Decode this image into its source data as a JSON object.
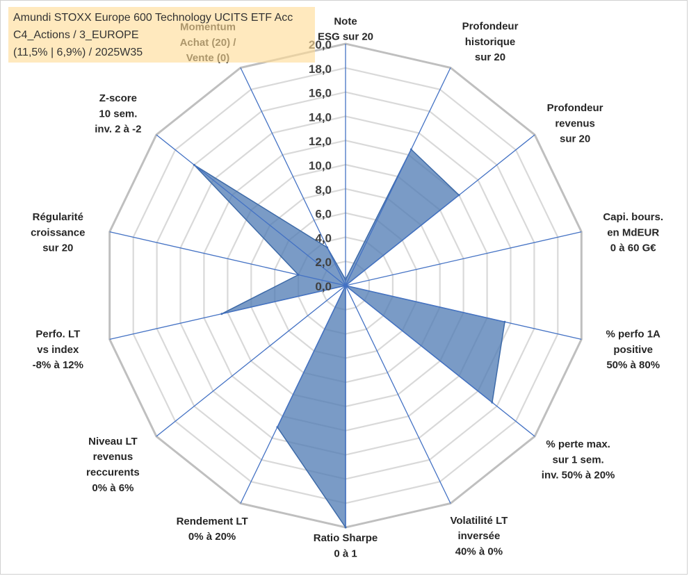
{
  "info_box": {
    "line1": "Amundi STOXX Europe 600 Technology UCITS ETF Acc",
    "line2": "C4_Actions / 3_EUROPE",
    "line3": "(11,5% | 6,9%) / 2025W35"
  },
  "chart_data": {
    "type": "radar",
    "title": "",
    "range": [
      0,
      20
    ],
    "tick_step": 2,
    "tick_labels": [
      "0,0",
      "2,0",
      "4,0",
      "6,0",
      "8,0",
      "10,0",
      "12,0",
      "14,0",
      "16,0",
      "18,0",
      "20,0"
    ],
    "axes": [
      {
        "label": [
          "Note",
          "ESG sur 20"
        ],
        "value": 0.5
      },
      {
        "label": [
          "Profondeur",
          "historique",
          "sur 20"
        ],
        "value": 12.5
      },
      {
        "label": [
          "Profondeur",
          "revenus",
          "sur 20"
        ],
        "value": 12.0
      },
      {
        "label": [
          "Capi. bours.",
          "en MdEUR",
          "0 à 60 G€"
        ],
        "value": 0.0
      },
      {
        "label": [
          "% perfo 1A",
          "positive",
          "50% à 80%"
        ],
        "value": 13.5
      },
      {
        "label": [
          "% perte max.",
          "sur 1 sem.",
          "inv. 50% à 20%"
        ],
        "value": 15.5
      },
      {
        "label": [
          "Volatilité LT",
          "inversée",
          "40% à 0%"
        ],
        "value": 0.0
      },
      {
        "label": [
          "Ratio Sharpe",
          "0 à 1"
        ],
        "value": 20.0
      },
      {
        "label": [
          "Rendement LT",
          "0% à 20%"
        ],
        "value": 13.0
      },
      {
        "label": [
          "Niveau LT",
          "revenus",
          "reccurents",
          "0% à 6%"
        ],
        "value": 0.0
      },
      {
        "label": [
          "Perfo. LT",
          "vs index",
          "-8% à 12%"
        ],
        "value": 10.5
      },
      {
        "label": [
          "Régularité",
          "croissance",
          "sur 20"
        ],
        "value": 4.0
      },
      {
        "label": [
          "Z-score",
          "10 sem.",
          "inv. 2 à -2"
        ],
        "value": 16.0
      },
      {
        "label": [
          "Momentum",
          "Achat (20) /",
          "Vente (0)"
        ],
        "value": 3.5
      }
    ],
    "colors": {
      "fill": "#4d7ab3",
      "fill_opacity": 0.75,
      "outline": "#3d6aa8",
      "spoke": "#4472c4",
      "grid_outer": "#bfbfbf",
      "grid_inner": "#d9d9d9"
    },
    "grid": true,
    "legend": "none"
  }
}
